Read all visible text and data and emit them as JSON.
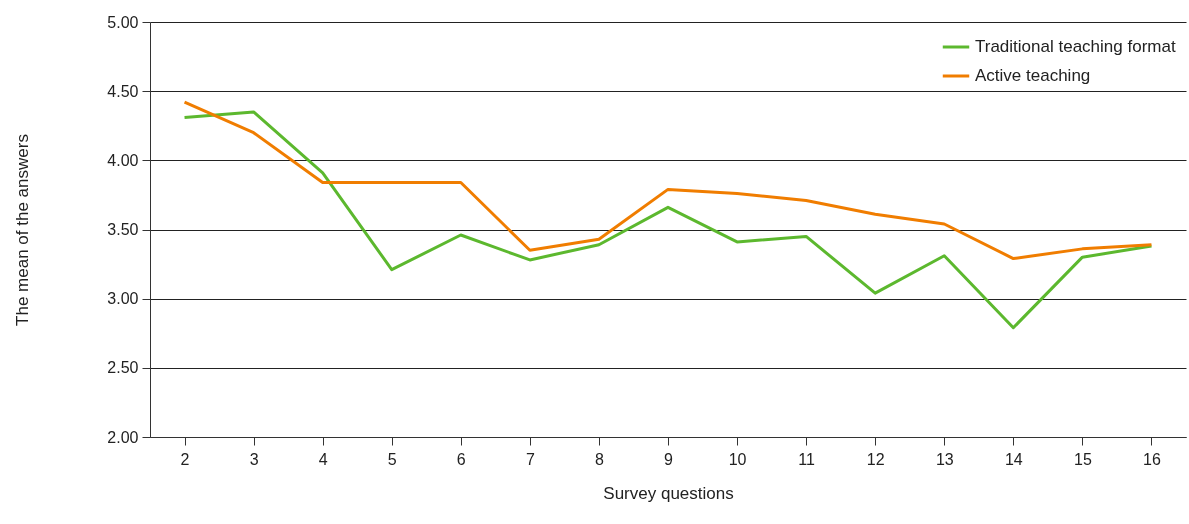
{
  "chart_data": {
    "type": "line",
    "xlabel": "Survey questions",
    "ylabel": "The mean of the answers",
    "categories": [
      "2",
      "3",
      "4",
      "5",
      "6",
      "7",
      "8",
      "9",
      "10",
      "11",
      "12",
      "13",
      "14",
      "15",
      "16"
    ],
    "series": [
      {
        "name": "Traditional teaching format",
        "color": "#5cb82e",
        "values": [
          4.31,
          4.35,
          3.91,
          3.21,
          3.46,
          3.28,
          3.39,
          3.66,
          3.41,
          3.45,
          3.04,
          3.31,
          2.79,
          3.3,
          3.38
        ]
      },
      {
        "name": "Active teaching",
        "color": "#f07d00",
        "values": [
          4.42,
          4.2,
          3.84,
          3.84,
          3.84,
          3.35,
          3.43,
          3.79,
          3.76,
          3.71,
          3.61,
          3.54,
          3.29,
          3.36,
          3.39
        ]
      }
    ],
    "ylim": [
      2,
      5
    ],
    "yticks": [
      {
        "value": 2,
        "label": "2.00"
      },
      {
        "value": 2.5,
        "label": "2.50"
      },
      {
        "value": 3,
        "label": "3.00"
      },
      {
        "value": 3.5,
        "label": "3.50"
      },
      {
        "value": 4,
        "label": "4.00"
      },
      {
        "value": 4.5,
        "label": "4.50"
      },
      {
        "value": 5,
        "label": "5.00"
      }
    ],
    "grid": "y",
    "legend": "top right",
    "marker": "none",
    "line_style": "solid"
  }
}
